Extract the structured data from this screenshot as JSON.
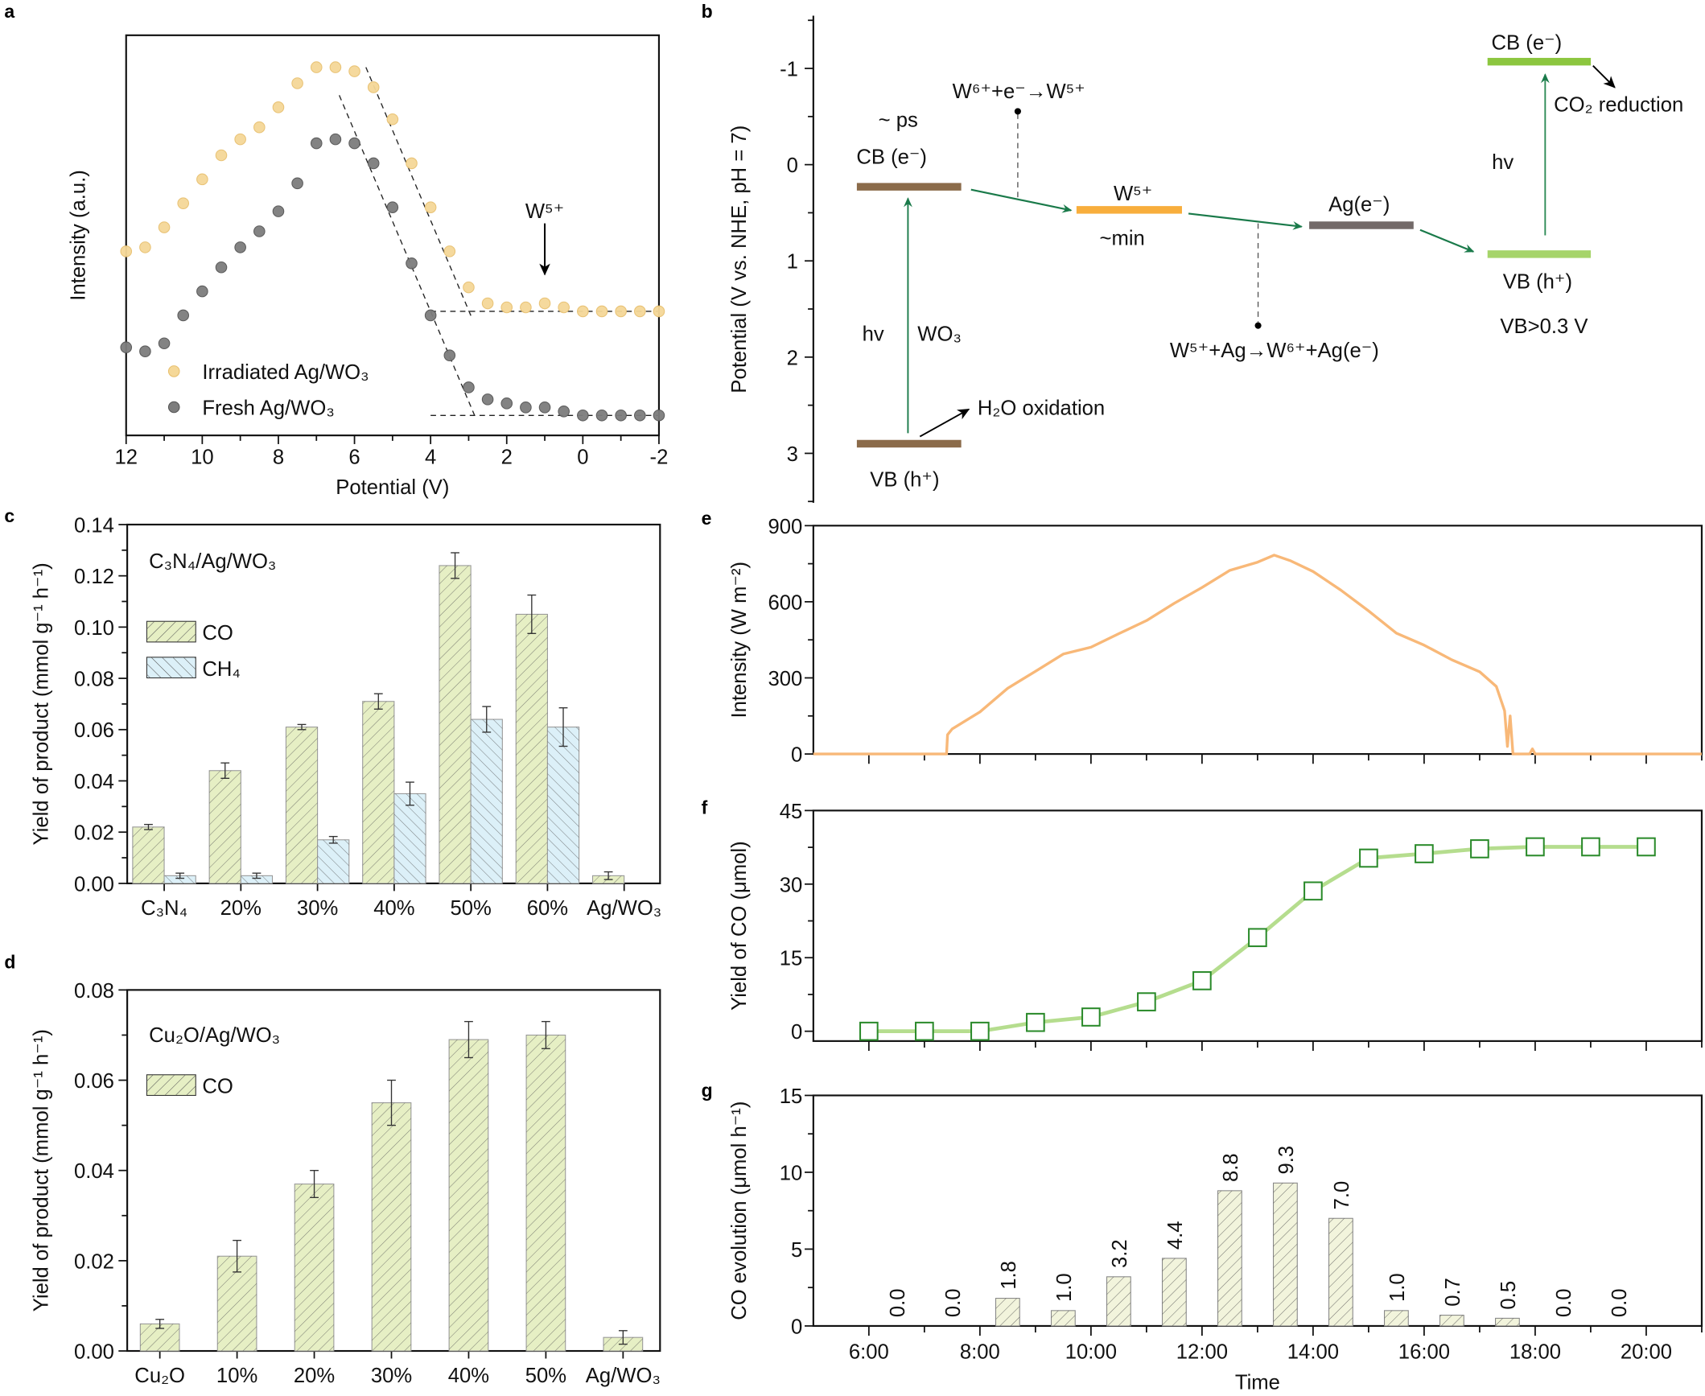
{
  "panel_letters": [
    "a",
    "b",
    "c",
    "d",
    "e",
    "f",
    "g"
  ],
  "chart_data": [
    {
      "type": "scatter",
      "xlabel": "Potential (V)",
      "ylabel": "Intensity (a.u.)",
      "xlim": [
        12,
        -2
      ],
      "xticks": [
        12,
        10,
        8,
        6,
        4,
        2,
        0,
        -2
      ],
      "xticklabels": [
        "12",
        "10",
        "8",
        "6",
        "4",
        "2",
        "0",
        "-2"
      ],
      "x": [
        12,
        11.5,
        11,
        10.5,
        10,
        9.5,
        9,
        8.5,
        8,
        7.5,
        7,
        6.5,
        6,
        5.5,
        5,
        4.5,
        4,
        3.5,
        3,
        2.5,
        2,
        1.5,
        1,
        0.5,
        0,
        -0.5,
        -1,
        -1.5,
        -2
      ],
      "series": [
        {
          "name": "Irradiated Ag/WO₃",
          "color": "#f5d898",
          "values": [
            46,
            47,
            52,
            58,
            64,
            70,
            74,
            77,
            82,
            88,
            92,
            92,
            91,
            87,
            79,
            68,
            57,
            46,
            37,
            33,
            32,
            32,
            33,
            32,
            31,
            31,
            31,
            31,
            31
          ]
        },
        {
          "name": "Fresh Ag/WO₃",
          "color": "#7d7d7d",
          "values": [
            22,
            21,
            23,
            30,
            36,
            42,
            47,
            51,
            56,
            63,
            73,
            74,
            73,
            68,
            57,
            43,
            30,
            20,
            12,
            9,
            8,
            7,
            7,
            6,
            5,
            5,
            5,
            5,
            5
          ]
        }
      ],
      "annotation": {
        "text": "W⁵⁺",
        "x": 1
      }
    },
    {
      "type": "diagram",
      "ylabel": "Potential (V vs. NHE, pH = 7)",
      "yticks": [
        -1,
        0,
        1,
        2,
        3
      ],
      "yticklabels": [
        "-1",
        "0",
        "1",
        "2",
        "3"
      ],
      "levels": {
        "wo3_cb": {
          "potential": 0.23,
          "color": "#8b6b4a"
        },
        "wo3_vb": {
          "potential": 2.9,
          "color": "#8b6b4a"
        },
        "w5": {
          "potential": 0.47,
          "color": "#f8ae3c"
        },
        "ag": {
          "potential": 0.63,
          "color": "#736a69"
        },
        "right_vb": {
          "potential": 0.93,
          "color": "#a6d46a"
        },
        "right_cb": {
          "potential": -1.07,
          "color": "#8cc63f"
        }
      },
      "labels": {
        "ps": "~ ps",
        "wo3_cb": "CB (e⁻)",
        "w6_reaction": "W⁶⁺+e⁻→W⁵⁺",
        "w5": "W⁵⁺",
        "min": "~min",
        "ag": "Ag(e⁻)",
        "ag_reaction": "W⁵⁺+Ag→W⁶⁺+Ag(e⁻)",
        "hv_left": "hv",
        "wo3": "WO₃",
        "h2o": "H₂O oxidation",
        "wo3_vb": "VB (h⁺)",
        "right_cb": "CB (e⁻)",
        "co2": "CO₂ reduction",
        "hv_right": "hv",
        "right_vb": "VB (h⁺)",
        "vb_note": "VB>0.3 V"
      },
      "colors": {
        "orange_text": "#f5a623",
        "arrow": "#1a7a4a",
        "note": "#1a7a3c"
      }
    },
    {
      "type": "bar",
      "title": "C₃N₄/Ag/WO₃",
      "ylabel": "Yield of product (mmol g⁻¹ h⁻¹)",
      "ylim": [
        0,
        0.14
      ],
      "yticks": [
        0,
        0.02,
        0.04,
        0.06,
        0.08,
        0.1,
        0.12,
        0.14
      ],
      "yticklabels": [
        "0.00",
        "0.02",
        "0.04",
        "0.06",
        "0.08",
        "0.10",
        "0.12",
        "0.14"
      ],
      "categories": [
        "C₃N₄",
        "20%",
        "30%",
        "40%",
        "50%",
        "60%",
        "Ag/WO₃"
      ],
      "series": [
        {
          "name": "CO",
          "color": "#e6efc4",
          "values": [
            0.022,
            0.044,
            0.061,
            0.071,
            0.124,
            0.105,
            0.003
          ],
          "errors": [
            0.001,
            0.003,
            0.001,
            0.003,
            0.005,
            0.0075,
            0.0015
          ]
        },
        {
          "name": "CH₄",
          "color": "#dcf0f8",
          "values": [
            0.003,
            0.003,
            0.017,
            0.035,
            0.064,
            0.061,
            null
          ],
          "errors": [
            0.001,
            0.001,
            0.0013,
            0.0045,
            0.005,
            0.0075,
            null
          ]
        }
      ]
    },
    {
      "type": "bar",
      "title": "Cu₂O/Ag/WO₃",
      "ylabel": "Yield of product (mmol g⁻¹ h⁻¹)",
      "ylim": [
        0,
        0.08
      ],
      "yticks": [
        0,
        0.02,
        0.04,
        0.06,
        0.08
      ],
      "yticklabels": [
        "0.00",
        "0.02",
        "0.04",
        "0.06",
        "0.08"
      ],
      "categories": [
        "Cu₂O",
        "10%",
        "20%",
        "30%",
        "40%",
        "50%",
        "Ag/WO₃"
      ],
      "series": [
        {
          "name": "CO",
          "color": "#e6efc4",
          "values": [
            0.006,
            0.021,
            0.037,
            0.055,
            0.069,
            0.07,
            0.003
          ],
          "errors": [
            0.001,
            0.0035,
            0.003,
            0.005,
            0.004,
            0.003,
            0.0015
          ]
        }
      ]
    },
    {
      "type": "line",
      "ylabel": "Intensity (W m⁻²)",
      "ylim": [
        0,
        900
      ],
      "yticks": [
        0,
        300,
        600,
        900
      ],
      "yticklabels": [
        "0",
        "300",
        "600",
        "900"
      ],
      "xlim": [
        "5:00",
        "21:00"
      ],
      "color": "#f8b878",
      "x": [
        "5:00",
        "7:24",
        "7:25",
        "7:30",
        "8:00",
        "8:30",
        "9:00",
        "9:30",
        "10:00",
        "10:30",
        "11:00",
        "11:30",
        "12:00",
        "12:30",
        "13:00",
        "13:18",
        "13:36",
        "14:00",
        "14:30",
        "15:00",
        "15:30",
        "16:00",
        "16:30",
        "17:00",
        "17:18",
        "17:27",
        "17:30",
        "17:33",
        "17:36",
        "17:54",
        "17:57",
        "18:00",
        "21:00"
      ],
      "values": [
        0,
        0,
        80,
        95,
        170,
        255,
        330,
        390,
        425,
        470,
        530,
        590,
        660,
        720,
        760,
        780,
        765,
        715,
        650,
        560,
        480,
        425,
        375,
        320,
        270,
        170,
        30,
        150,
        0,
        0,
        20,
        0,
        0
      ]
    },
    {
      "type": "line",
      "ylabel": "Yield of CO (μmol)",
      "ylim": [
        -2,
        45
      ],
      "yticks": [
        0,
        15,
        30,
        45
      ],
      "yticklabels": [
        "0",
        "15",
        "30",
        "45"
      ],
      "xlim": [
        "5:00",
        "21:00"
      ],
      "line_color": "#b5dd8e",
      "marker_color": "#2a8a2a",
      "x": [
        "6:00",
        "7:00",
        "8:00",
        "9:00",
        "10:00",
        "11:00",
        "12:00",
        "13:00",
        "14:00",
        "15:00",
        "16:00",
        "17:00",
        "18:00",
        "19:00",
        "20:00"
      ],
      "values": [
        0,
        0,
        0,
        1.8,
        2.9,
        6.0,
        10.3,
        19.1,
        28.6,
        35.3,
        36.2,
        37.2,
        37.6,
        37.6,
        37.6
      ]
    },
    {
      "type": "bar",
      "xlabel": "Time",
      "ylabel": "CO evolution (μmol h⁻¹)",
      "ylim": [
        0,
        15
      ],
      "yticks": [
        0,
        5,
        10,
        15
      ],
      "yticklabels": [
        "0",
        "5",
        "10",
        "15"
      ],
      "xlim": [
        "5:00",
        "21:00"
      ],
      "xticks": [
        "6:00",
        "8:00",
        "10:00",
        "12:00",
        "14:00",
        "16:00",
        "18:00",
        "20:00"
      ],
      "xticklabels": [
        "6:00",
        "8:00",
        "10:00",
        "12:00",
        "14:00",
        "16:00",
        "18:00",
        "20:00"
      ],
      "color": "#f2f4dc",
      "x": [
        "6:30",
        "7:30",
        "8:30",
        "9:30",
        "10:30",
        "11:30",
        "12:30",
        "13:30",
        "14:30",
        "15:30",
        "16:30",
        "17:30",
        "18:30",
        "19:30"
      ],
      "values": [
        0,
        0,
        1.8,
        1.0,
        3.2,
        4.4,
        8.8,
        9.3,
        7.0,
        1.0,
        0.7,
        0.5,
        0,
        0
      ],
      "data_labels": [
        "0.0",
        "0.0",
        "1.8",
        "1.0",
        "3.2",
        "4.4",
        "8.8",
        "9.3",
        "7.0",
        "1.0",
        "0.7",
        "0.5",
        "0.0",
        "0.0"
      ]
    }
  ]
}
